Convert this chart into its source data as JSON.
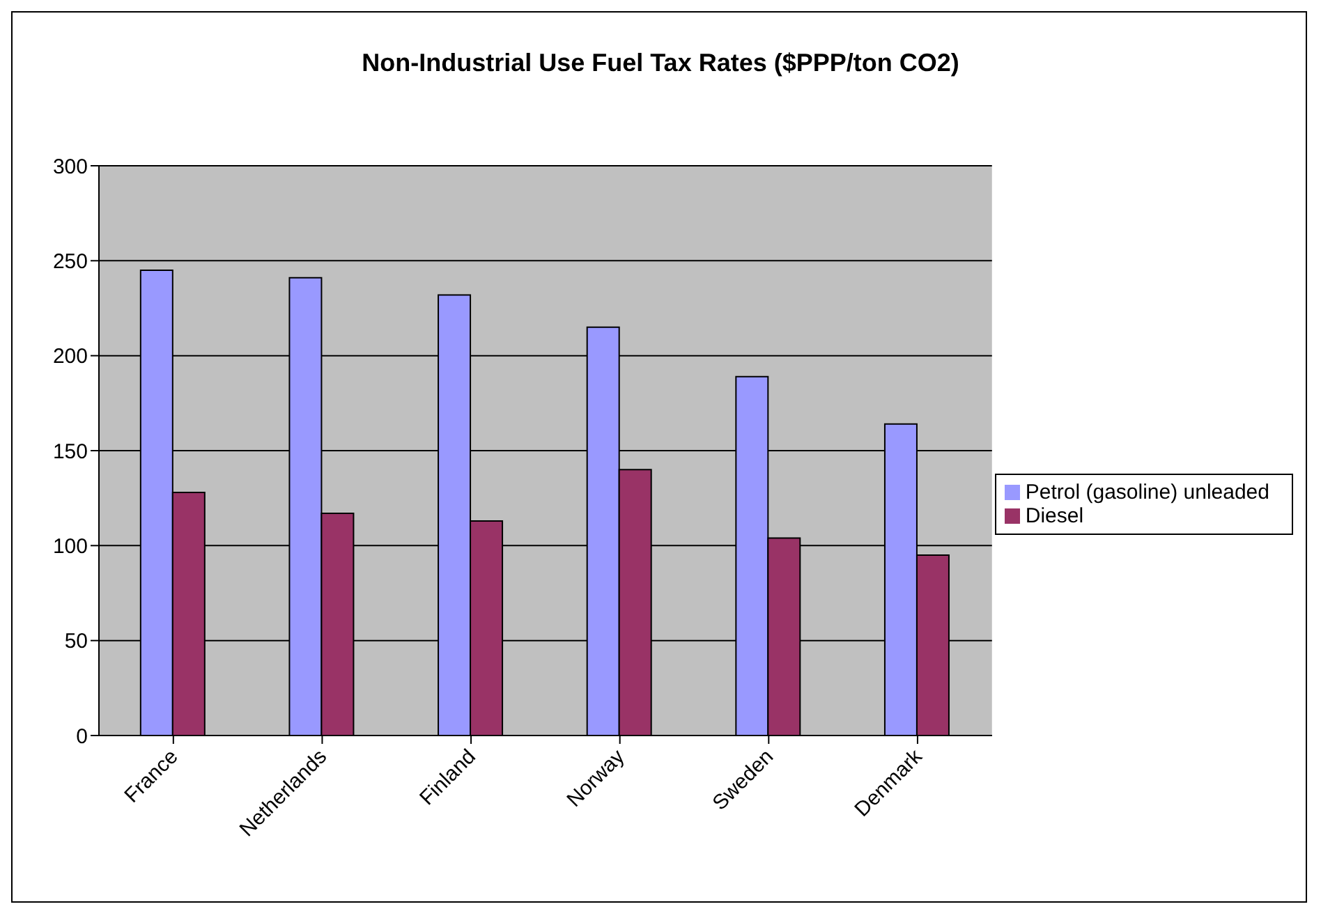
{
  "chart_data": {
    "type": "bar",
    "title": "Non-Industrial Use Fuel Tax Rates ($PPP/ton CO2)",
    "categories": [
      "France",
      "Netherlands",
      "Finland",
      "Norway",
      "Sweden",
      "Denmark"
    ],
    "series": [
      {
        "name": "Petrol (gasoline) unleaded",
        "color": "#9999ff",
        "values": [
          245,
          241,
          232,
          215,
          189,
          164
        ]
      },
      {
        "name": "Diesel",
        "color": "#993366",
        "values": [
          128,
          117,
          113,
          140,
          104,
          95
        ]
      }
    ],
    "ylim": [
      0,
      300
    ],
    "yticks": [
      0,
      50,
      100,
      150,
      200,
      250,
      300
    ],
    "grid": "y",
    "legend": "right"
  }
}
